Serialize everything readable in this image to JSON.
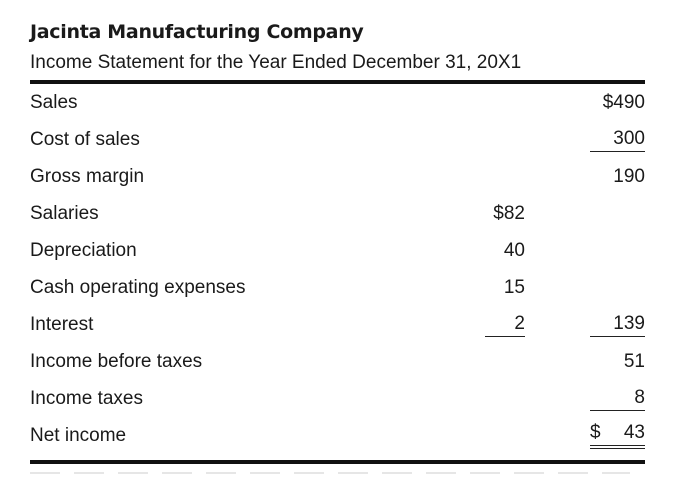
{
  "company": "Jacinta Manufacturing Company",
  "subtitle": "Income Statement for the Year Ended December 31, 20X1",
  "rows": [
    {
      "label": "Sales",
      "mid": "",
      "right": "$490"
    },
    {
      "label": "Cost of sales",
      "mid": "",
      "right": "300"
    },
    {
      "label": "Gross margin",
      "mid": "",
      "right": "190"
    },
    {
      "label": "Salaries",
      "mid": "$82",
      "right": ""
    },
    {
      "label": "Depreciation",
      "mid": "40",
      "right": ""
    },
    {
      "label": "Cash operating expenses",
      "mid": "15",
      "right": ""
    },
    {
      "label": "Interest",
      "mid": "2",
      "right": "139"
    },
    {
      "label": "Income before taxes",
      "mid": "",
      "right": "51"
    },
    {
      "label": "Income taxes",
      "mid": "",
      "right": "8"
    },
    {
      "label": "Net income",
      "mid": "",
      "right_symbol": "$",
      "right_value": "43"
    }
  ]
}
